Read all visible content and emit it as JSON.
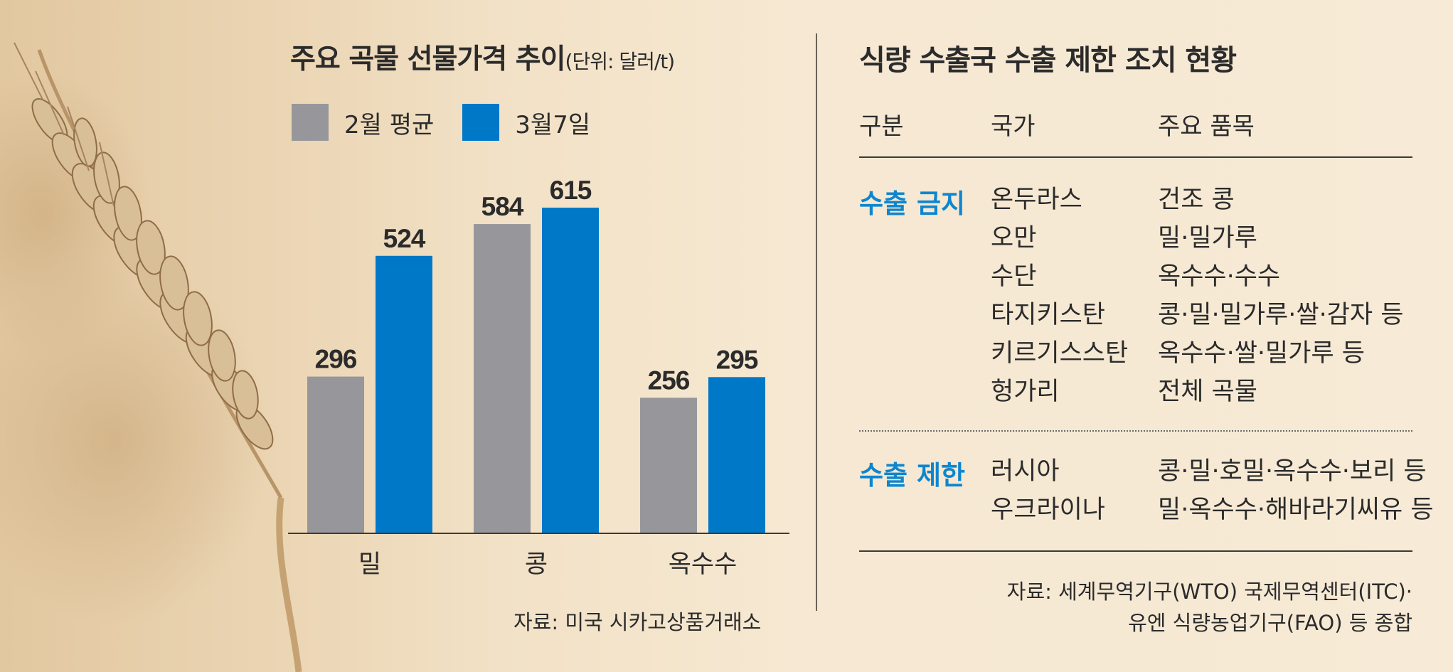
{
  "colors": {
    "feb_avg": "#97979b",
    "mar7": "#0078c8",
    "accent_category": "#0e86cf"
  },
  "left": {
    "title": "주요 곡물 선물가격 추이",
    "title_unit": "(단위: 달러/t)",
    "source": "자료: 미국 시카고상품거래소"
  },
  "chart_data": {
    "type": "bar",
    "title": "주요 곡물 선물가격 추이",
    "unit": "(단위: 달러/t)",
    "categories": [
      "밀",
      "콩",
      "옥수수"
    ],
    "series": [
      {
        "name": "2월 평균",
        "values": [
          296,
          584,
          256
        ]
      },
      {
        "name": "3월7일",
        "values": [
          524,
          615,
          295
        ]
      }
    ],
    "ylim": [
      0,
      615
    ],
    "grid": false,
    "legend": "top-left",
    "data_labels": true
  },
  "right": {
    "title": "식량 수출국 수출 제한 조치 현황",
    "headers": {
      "category": "구분",
      "country": "국가",
      "items": "주요 품목"
    },
    "groups": [
      {
        "category": "수출 금지",
        "countries": [
          "온두라스",
          "오만",
          "수단",
          "타지키스탄",
          "키르기스스탄",
          "헝가리"
        ],
        "items": [
          "건조 콩",
          "밀·밀가루",
          "옥수수·수수",
          "콩·밀·밀가루·쌀·감자 등",
          "옥수수·쌀·밀가루 등",
          "전체 곡물"
        ]
      },
      {
        "category": "수출 제한",
        "countries": [
          "러시아",
          "우크라이나"
        ],
        "items": [
          "콩·밀·호밀·옥수수·보리 등",
          "밀·옥수수·해바라기씨유 등"
        ]
      }
    ],
    "source_line1": "자료: 세계무역기구(WTO) 국제무역센터(ITC)·",
    "source_line2": "유엔 식량농업기구(FAO) 등 종합"
  }
}
